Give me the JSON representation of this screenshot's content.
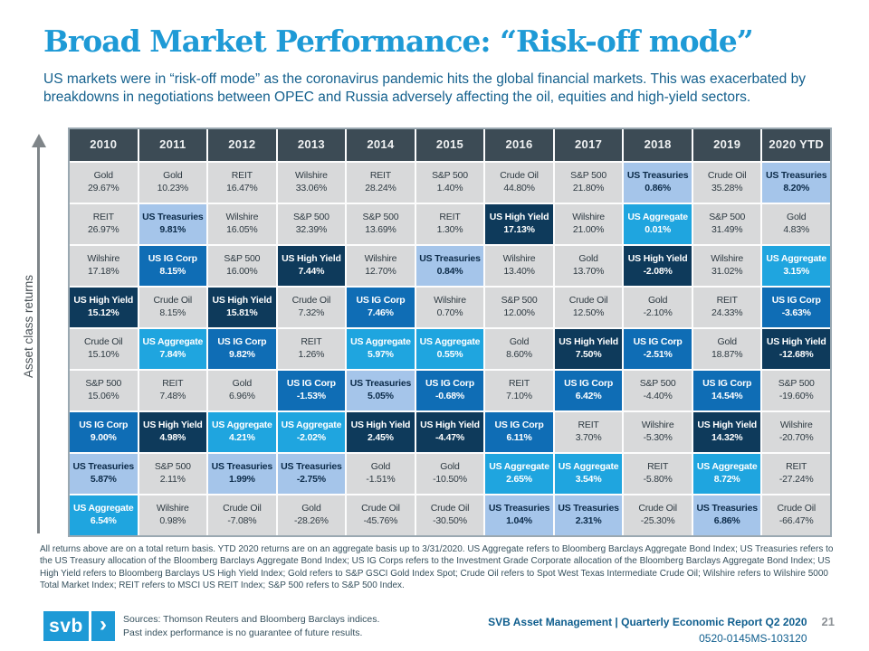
{
  "page": {
    "title": "Broad Market Performance: “Risk-off mode”",
    "subtitle": "US markets were in “risk-off mode” as the coronavirus pandemic hits the global financial markets. This was exacerbated by breakdowns in negotiations between OPEC and Russia adversely affecting the oil, equities and high-yield sectors.",
    "axis_label": "Asset class returns",
    "footnote": "All returns above are on a total return basis. YTD 2020 returns are on an aggregate basis up to 3/31/2020. US Aggregate refers to Bloomberg Barclays Aggregate Bond Index; US Treasuries refers to the US Treasury allocation of the Bloomberg Barclays Aggregate Bond Index; US IG Corps refers to the Investment Grade Corporate allocation of the Bloomberg Barclays Aggregate Bond Index; US High Yield refers to Bloomberg Barclays US High Yield Index; Gold refers to S&P GSCI Gold Index Spot; Crude Oil refers to Spot West Texas Intermediate Crude Oil; Wilshire refers to Wilshire 5000 Total Market Index; REIT refers to MSCI US REIT Index; S&P 500 refers to S&P 500 Index.",
    "footer": {
      "logo_text": "svb",
      "logo_chevron": "›",
      "sources_line1": "Sources: Thomson Reuters and Bloomberg Barclays indices.",
      "sources_line2": "Past index performance is no guarantee of future results.",
      "report_title": "SVB Asset Management | Quarterly Economic Report Q2 2020",
      "doc_code": "0520-0145MS-103120",
      "page_number": "21"
    }
  },
  "colors": {
    "title_blue": "#1E9AD6",
    "subtitle_blue": "#15618E",
    "header_slate": "#3C4B55",
    "cell_gray": "#D8D9DA",
    "us_treasuries_bg": "#A5C5EA",
    "us_aggregate_bg": "#1FA5DF",
    "us_ig_corp_bg": "#0F6DB5",
    "us_high_yield_bg": "#0E3A5B",
    "logo_blue": "#1E9AD6"
  },
  "asset_styles": {
    "Gold": "gray",
    "REIT": "gray",
    "Wilshire": "gray",
    "Crude Oil": "gray",
    "S&P 500": "gray",
    "US Treasuries": "tre",
    "US Aggregate": "agg",
    "US IG Corp": "igc",
    "US High Yield": "hy"
  },
  "chart_data": {
    "type": "table",
    "title": "Asset class returns ranked by year (periodic table of returns)",
    "columns": [
      "2010",
      "2011",
      "2012",
      "2013",
      "2014",
      "2015",
      "2016",
      "2017",
      "2018",
      "2019",
      "2020 YTD"
    ],
    "rows": [
      [
        [
          "Gold",
          "29.67%"
        ],
        [
          "Gold",
          "10.23%"
        ],
        [
          "REIT",
          "16.47%"
        ],
        [
          "Wilshire",
          "33.06%"
        ],
        [
          "REIT",
          "28.24%"
        ],
        [
          "S&P 500",
          "1.40%"
        ],
        [
          "Crude Oil",
          "44.80%"
        ],
        [
          "S&P 500",
          "21.80%"
        ],
        [
          "US Treasuries",
          "0.86%"
        ],
        [
          "Crude Oil",
          "35.28%"
        ],
        [
          "US Treasuries",
          "8.20%"
        ]
      ],
      [
        [
          "REIT",
          "26.97%"
        ],
        [
          "US Treasuries",
          "9.81%"
        ],
        [
          "Wilshire",
          "16.05%"
        ],
        [
          "S&P 500",
          "32.39%"
        ],
        [
          "S&P 500",
          "13.69%"
        ],
        [
          "REIT",
          "1.30%"
        ],
        [
          "US High Yield",
          "17.13%"
        ],
        [
          "Wilshire",
          "21.00%"
        ],
        [
          "US Aggregate",
          "0.01%"
        ],
        [
          "S&P 500",
          "31.49%"
        ],
        [
          "Gold",
          "4.83%"
        ]
      ],
      [
        [
          "Wilshire",
          "17.18%"
        ],
        [
          "US IG Corp",
          "8.15%"
        ],
        [
          "S&P 500",
          "16.00%"
        ],
        [
          "US High Yield",
          "7.44%"
        ],
        [
          "Wilshire",
          "12.70%"
        ],
        [
          "US Treasuries",
          "0.84%"
        ],
        [
          "Wilshire",
          "13.40%"
        ],
        [
          "Gold",
          "13.70%"
        ],
        [
          "US High Yield",
          "-2.08%"
        ],
        [
          "Wilshire",
          "31.02%"
        ],
        [
          "US Aggregate",
          "3.15%"
        ]
      ],
      [
        [
          "US High Yield",
          "15.12%"
        ],
        [
          "Crude Oil",
          "8.15%"
        ],
        [
          "US High Yield",
          "15.81%"
        ],
        [
          "Crude Oil",
          "7.32%"
        ],
        [
          "US IG Corp",
          "7.46%"
        ],
        [
          "Wilshire",
          "0.70%"
        ],
        [
          "S&P 500",
          "12.00%"
        ],
        [
          "Crude Oil",
          "12.50%"
        ],
        [
          "Gold",
          "-2.10%"
        ],
        [
          "REIT",
          "24.33%"
        ],
        [
          "US IG Corp",
          "-3.63%"
        ]
      ],
      [
        [
          "Crude Oil",
          "15.10%"
        ],
        [
          "US Aggregate",
          "7.84%"
        ],
        [
          "US IG Corp",
          "9.82%"
        ],
        [
          "REIT",
          "1.26%"
        ],
        [
          "US Aggregate",
          "5.97%"
        ],
        [
          "US Aggregate",
          "0.55%"
        ],
        [
          "Gold",
          "8.60%"
        ],
        [
          "US High Yield",
          "7.50%"
        ],
        [
          "US IG Corp",
          "-2.51%"
        ],
        [
          "Gold",
          "18.87%"
        ],
        [
          "US High Yield",
          "-12.68%"
        ]
      ],
      [
        [
          "S&P 500",
          "15.06%"
        ],
        [
          "REIT",
          "7.48%"
        ],
        [
          "Gold",
          "6.96%"
        ],
        [
          "US IG Corp",
          "-1.53%"
        ],
        [
          "US Treasuries",
          "5.05%"
        ],
        [
          "US IG Corp",
          "-0.68%"
        ],
        [
          "REIT",
          "7.10%"
        ],
        [
          "US IG Corp",
          "6.42%"
        ],
        [
          "S&P 500",
          "-4.40%"
        ],
        [
          "US IG Corp",
          "14.54%"
        ],
        [
          "S&P 500",
          "-19.60%"
        ]
      ],
      [
        [
          "US IG Corp",
          "9.00%"
        ],
        [
          "US High Yield",
          "4.98%"
        ],
        [
          "US Aggregate",
          "4.21%"
        ],
        [
          "US Aggregate",
          "-2.02%"
        ],
        [
          "US High Yield",
          "2.45%"
        ],
        [
          "US High Yield",
          "-4.47%"
        ],
        [
          "US IG Corp",
          "6.11%"
        ],
        [
          "REIT",
          "3.70%"
        ],
        [
          "Wilshire",
          "-5.30%"
        ],
        [
          "US High Yield",
          "14.32%"
        ],
        [
          "Wilshire",
          "-20.70%"
        ]
      ],
      [
        [
          "US Treasuries",
          "5.87%"
        ],
        [
          "S&P 500",
          "2.11%"
        ],
        [
          "US Treasuries",
          "1.99%"
        ],
        [
          "US Treasuries",
          "-2.75%"
        ],
        [
          "Gold",
          "-1.51%"
        ],
        [
          "Gold",
          "-10.50%"
        ],
        [
          "US Aggregate",
          "2.65%"
        ],
        [
          "US Aggregate",
          "3.54%"
        ],
        [
          "REIT",
          "-5.80%"
        ],
        [
          "US Aggregate",
          "8.72%"
        ],
        [
          "REIT",
          "-27.24%"
        ]
      ],
      [
        [
          "US Aggregate",
          "6.54%"
        ],
        [
          "Wilshire",
          "0.98%"
        ],
        [
          "Crude Oil",
          "-7.08%"
        ],
        [
          "Gold",
          "-28.26%"
        ],
        [
          "Crude Oil",
          "-45.76%"
        ],
        [
          "Crude Oil",
          "-30.50%"
        ],
        [
          "US Treasuries",
          "1.04%"
        ],
        [
          "US Treasuries",
          "2.31%"
        ],
        [
          "Crude Oil",
          "-25.30%"
        ],
        [
          "US Treasuries",
          "6.86%"
        ],
        [
          "Crude Oil",
          "-66.47%"
        ]
      ]
    ]
  }
}
